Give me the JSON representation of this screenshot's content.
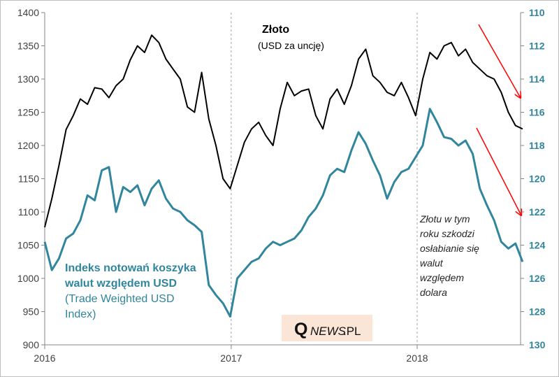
{
  "chart_data": {
    "type": "line",
    "title": "Złoto",
    "subtitle": "(USD za uncję)",
    "xlim": [
      "2016-01-01",
      "2018-07-31"
    ],
    "x_ticks": [
      "2016",
      "2017",
      "2018"
    ],
    "y_left": {
      "ylim": [
        900,
        1400
      ],
      "ticks": [
        900,
        950,
        1000,
        1050,
        1100,
        1150,
        1200,
        1250,
        1300,
        1350,
        1400
      ]
    },
    "y_right": {
      "ylim": [
        130,
        110
      ],
      "inverted": true,
      "ticks": [
        110,
        112,
        114,
        116,
        118,
        120,
        122,
        124,
        126,
        128,
        130
      ]
    },
    "grid": false,
    "dates": [
      "2016-01-01",
      "2016-01-15",
      "2016-01-29",
      "2016-02-12",
      "2016-02-26",
      "2016-03-11",
      "2016-03-25",
      "2016-04-08",
      "2016-04-22",
      "2016-05-06",
      "2016-05-20",
      "2016-06-03",
      "2016-06-17",
      "2016-07-01",
      "2016-07-15",
      "2016-07-29",
      "2016-08-12",
      "2016-08-26",
      "2016-09-09",
      "2016-09-23",
      "2016-10-07",
      "2016-10-21",
      "2016-11-04",
      "2016-11-18",
      "2016-12-02",
      "2016-12-16",
      "2016-12-30",
      "2017-01-13",
      "2017-01-27",
      "2017-02-10",
      "2017-02-24",
      "2017-03-10",
      "2017-03-24",
      "2017-04-07",
      "2017-04-21",
      "2017-05-05",
      "2017-05-19",
      "2017-06-02",
      "2017-06-16",
      "2017-06-30",
      "2017-07-14",
      "2017-07-28",
      "2017-08-11",
      "2017-08-25",
      "2017-09-08",
      "2017-09-22",
      "2017-10-06",
      "2017-10-20",
      "2017-11-03",
      "2017-11-17",
      "2017-12-01",
      "2017-12-15",
      "2017-12-29",
      "2018-01-12",
      "2018-01-26",
      "2018-02-09",
      "2018-02-23",
      "2018-03-09",
      "2018-03-23",
      "2018-04-06",
      "2018-04-20",
      "2018-05-04",
      "2018-05-18",
      "2018-06-01",
      "2018-06-15",
      "2018-06-29",
      "2018-07-13",
      "2018-07-27"
    ],
    "series": [
      {
        "name": "Złoto",
        "axis": "left",
        "color": "#000000",
        "values": [
          1077,
          1120,
          1170,
          1224,
          1245,
          1270,
          1262,
          1287,
          1285,
          1272,
          1290,
          1300,
          1329,
          1350,
          1340,
          1366,
          1355,
          1330,
          1315,
          1300,
          1258,
          1250,
          1310,
          1240,
          1200,
          1150,
          1135,
          1170,
          1205,
          1225,
          1235,
          1215,
          1200,
          1255,
          1295,
          1275,
          1282,
          1285,
          1245,
          1225,
          1270,
          1285,
          1262,
          1290,
          1330,
          1345,
          1305,
          1295,
          1280,
          1275,
          1295,
          1272,
          1245,
          1300,
          1340,
          1330,
          1350,
          1355,
          1335,
          1345,
          1325,
          1315,
          1305,
          1300,
          1280,
          1250,
          1230,
          1225
        ]
      },
      {
        "name": "Indeks notowań koszyka walut względem USD",
        "axis": "right",
        "color": "#31859c",
        "values": [
          123.8,
          125.5,
          124.8,
          123.6,
          123.3,
          122.5,
          121.0,
          121.3,
          119.5,
          119.3,
          122.0,
          120.5,
          120.8,
          120.4,
          121.6,
          120.6,
          120.1,
          121.2,
          121.8,
          122.0,
          122.5,
          122.8,
          123.2,
          126.4,
          127.0,
          127.5,
          128.3,
          126.0,
          125.5,
          125.0,
          124.8,
          124.2,
          123.8,
          124.0,
          123.8,
          123.6,
          123.1,
          122.3,
          121.8,
          121.0,
          119.8,
          119.4,
          119.6,
          118.3,
          117.2,
          117.9,
          118.9,
          119.8,
          121.2,
          120.2,
          119.6,
          119.4,
          118.7,
          118.0,
          115.8,
          116.6,
          117.5,
          117.6,
          118.0,
          117.7,
          118.5,
          120.6,
          121.6,
          122.5,
          123.8,
          124.2,
          123.9,
          125.0
        ]
      }
    ],
    "annotations": {
      "usd_label_bold": [
        "Indeks notowań koszyka",
        "walut względem USD"
      ],
      "usd_label_sub": [
        "(Trade Weighted USD",
        "Index)"
      ],
      "note": [
        "Złotu w tym",
        "roku szkodzi",
        "osłabianie się",
        "walut",
        "względem",
        "dolara"
      ],
      "arrow_color": "#ff0000"
    }
  },
  "logo": {
    "text_q": "Q",
    "text_rest": "NEWS",
    "text_pl": ".PL",
    "bg": "#fbe5d6"
  },
  "colors": {
    "gold": "#000000",
    "usd": "#31859c",
    "axis": "#868686"
  }
}
